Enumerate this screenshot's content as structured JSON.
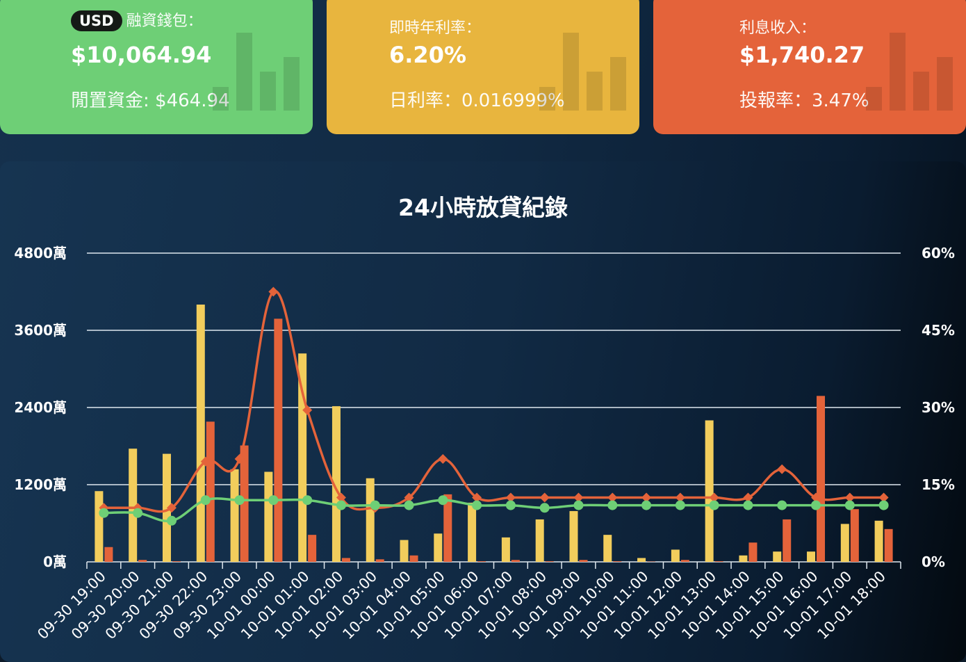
{
  "cards": [
    {
      "badge": "USD",
      "label": "融資錢包：",
      "value": "$10,064.94",
      "sub": "閒置資金: $464.94",
      "color": "#6ecf76"
    },
    {
      "label": "即時年利率：",
      "value": "6.20%",
      "sub": "日利率：0.016999%",
      "color": "#e8b53e"
    },
    {
      "label": "利息收入：",
      "value": "$1,740.27",
      "sub": "投報率：3.47%",
      "color": "#e4633a"
    }
  ],
  "chart_data": {
    "type": "bar",
    "title": "24小時放貸紀錄",
    "categories": [
      "09-30 19:00",
      "09-30 20:00",
      "09-30 21:00",
      "09-30 22:00",
      "09-30 23:00",
      "10-01 00:00",
      "10-01 01:00",
      "10-01 02:00",
      "10-01 03:00",
      "10-01 04:00",
      "10-01 05:00",
      "10-01 06:00",
      "10-01 07:00",
      "10-01 08:00",
      "10-01 09:00",
      "10-01 10:00",
      "10-01 11:00",
      "10-01 12:00",
      "10-01 13:00",
      "10-01 14:00",
      "10-01 15:00",
      "10-01 16:00",
      "10-01 17:00",
      "10-01 18:00"
    ],
    "y_left": {
      "ticks": [
        "0萬",
        "1200萬",
        "2400萬",
        "3600萬",
        "4800萬"
      ],
      "ylim": [
        0,
        4800
      ]
    },
    "y_right": {
      "ticks": [
        "0%",
        "15%",
        "30%",
        "45%",
        "60%"
      ],
      "ylim": [
        0,
        60
      ]
    },
    "grid": true,
    "series": [
      {
        "type": "bar",
        "axis": "left",
        "color": "#f2cd5c",
        "values": [
          1100,
          1760,
          1680,
          4000,
          1440,
          1400,
          3240,
          2420,
          1300,
          340,
          440,
          920,
          380,
          660,
          790,
          420,
          60,
          190,
          2200,
          100,
          160,
          160,
          590,
          640
        ]
      },
      {
        "type": "bar",
        "axis": "left",
        "color": "#e4633a",
        "values": [
          230,
          30,
          10,
          2180,
          1810,
          3780,
          420,
          60,
          40,
          100,
          1050,
          10,
          30,
          10,
          30,
          10,
          5,
          30,
          10,
          300,
          660,
          2580,
          820,
          510
        ]
      },
      {
        "type": "line",
        "axis": "right",
        "color": "#e4633a",
        "values": [
          10.5,
          10.5,
          10.5,
          19.5,
          20,
          52.5,
          29.5,
          12.5,
          10.5,
          12.5,
          20,
          12.5,
          12.5,
          12.5,
          12.5,
          12.5,
          12.5,
          12.5,
          12.5,
          12.5,
          18,
          12.5,
          12.5,
          12.5
        ]
      },
      {
        "type": "line",
        "axis": "right",
        "color": "#6ecf76",
        "values": [
          9.5,
          9.5,
          8,
          12,
          12,
          12,
          12,
          11,
          11,
          11,
          12,
          11,
          11,
          10.5,
          11,
          11,
          11,
          11,
          11,
          11,
          11,
          11,
          11,
          11
        ]
      }
    ]
  }
}
